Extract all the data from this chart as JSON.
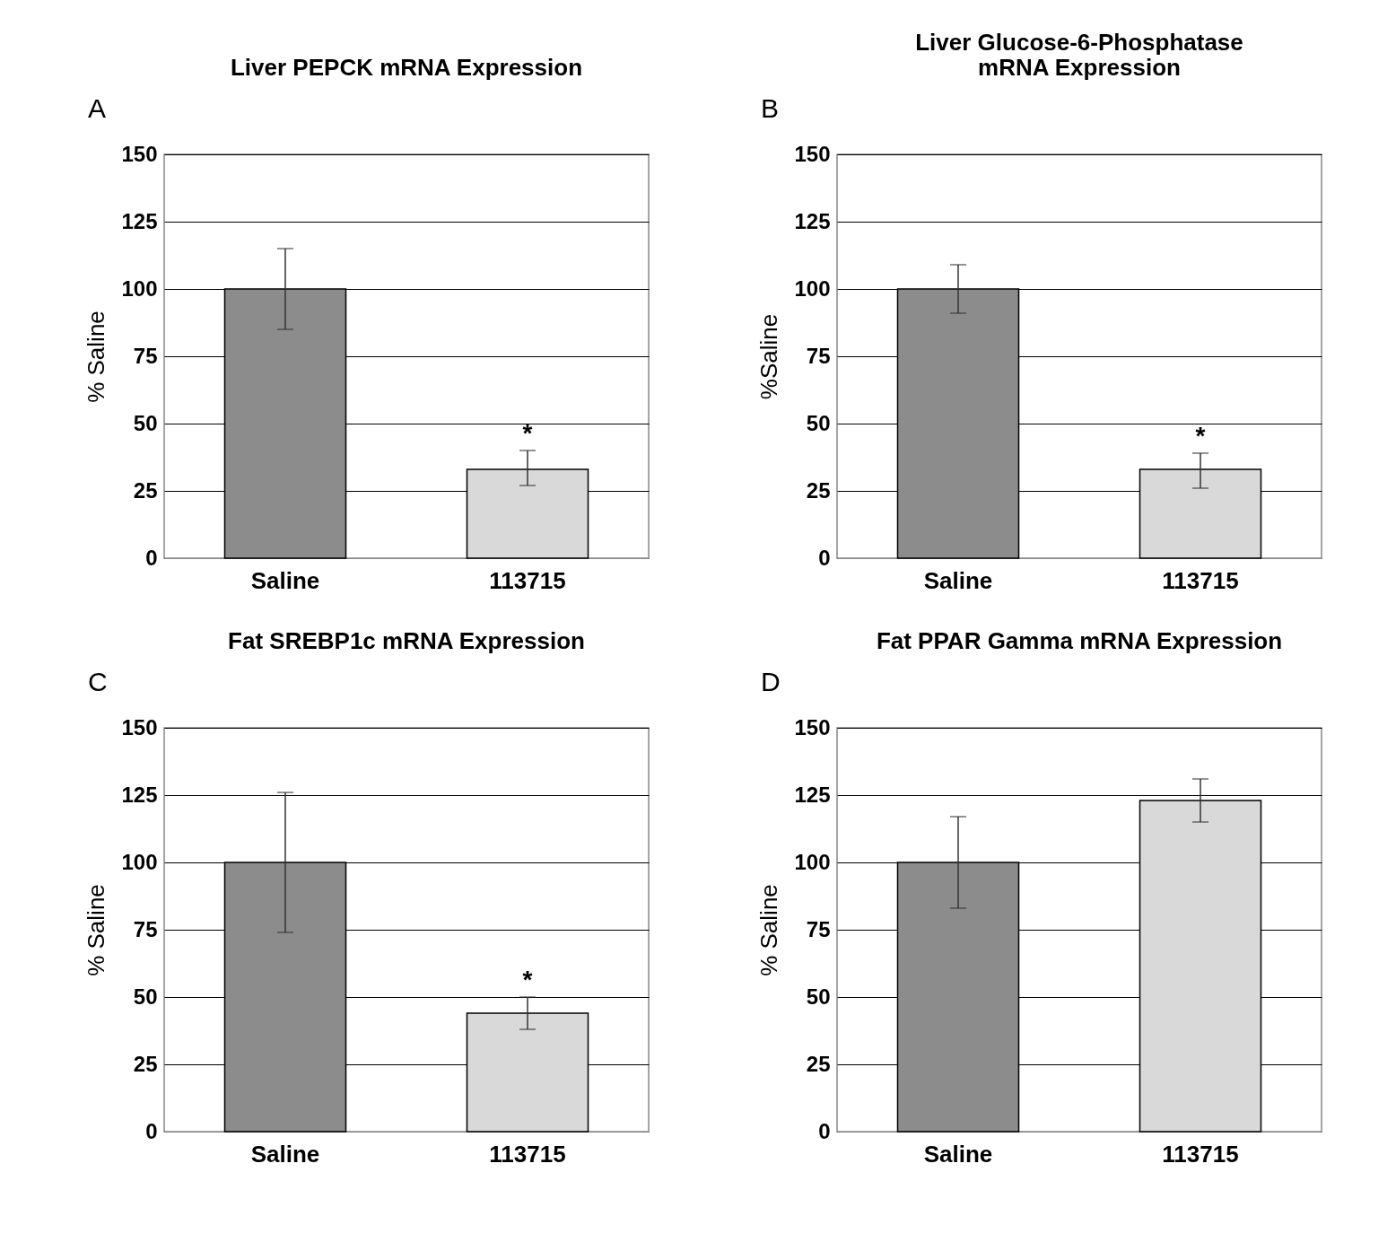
{
  "chart_data": [
    {
      "type": "bar",
      "title": "Liver PEPCK mRNA Expression",
      "ylabel": "% Saline",
      "categories": [
        "Saline",
        "113715"
      ],
      "values": [
        100,
        33
      ],
      "errors": [
        [
          85,
          115
        ],
        [
          27,
          40
        ]
      ],
      "colors": [
        "#8c8c8c",
        "#d9d9d9"
      ],
      "ylim": [
        0,
        150
      ],
      "yticks": [
        0,
        25,
        50,
        75,
        100,
        125,
        150
      ],
      "grid": "y",
      "annotations": [
        "A",
        "*"
      ]
    },
    {
      "type": "bar",
      "title": "Liver Glucose-6-Phosphatase mRNA Expression",
      "ylabel": "%Saline",
      "categories": [
        "Saline",
        "113715"
      ],
      "values": [
        100,
        33
      ],
      "errors": [
        [
          91,
          109
        ],
        [
          26,
          39
        ]
      ],
      "colors": [
        "#8c8c8c",
        "#d9d9d9"
      ],
      "ylim": [
        0,
        150
      ],
      "yticks": [
        0,
        25,
        50,
        75,
        100,
        125,
        150
      ],
      "grid": "y",
      "annotations": [
        "B",
        "*"
      ]
    },
    {
      "type": "bar",
      "title": "Fat SREBP1c mRNA Expression",
      "ylabel": "% Saline",
      "categories": [
        "Saline",
        "113715"
      ],
      "values": [
        100,
        44
      ],
      "errors": [
        [
          74,
          126
        ],
        [
          38,
          50
        ]
      ],
      "colors": [
        "#8c8c8c",
        "#d9d9d9"
      ],
      "ylim": [
        0,
        150
      ],
      "yticks": [
        0,
        25,
        50,
        75,
        100,
        125,
        150
      ],
      "grid": "y",
      "annotations": [
        "C",
        "*"
      ]
    },
    {
      "type": "bar",
      "title": "Fat PPAR Gamma mRNA Expression",
      "ylabel": "% Saline",
      "categories": [
        "Saline",
        "113715"
      ],
      "values": [
        100,
        123
      ],
      "errors": [
        [
          83,
          117
        ],
        [
          115,
          131
        ]
      ],
      "colors": [
        "#8c8c8c",
        "#d9d9d9"
      ],
      "ylim": [
        0,
        150
      ],
      "yticks": [
        0,
        25,
        50,
        75,
        100,
        125,
        150
      ],
      "grid": "y",
      "annotations": [
        "D"
      ]
    }
  ]
}
